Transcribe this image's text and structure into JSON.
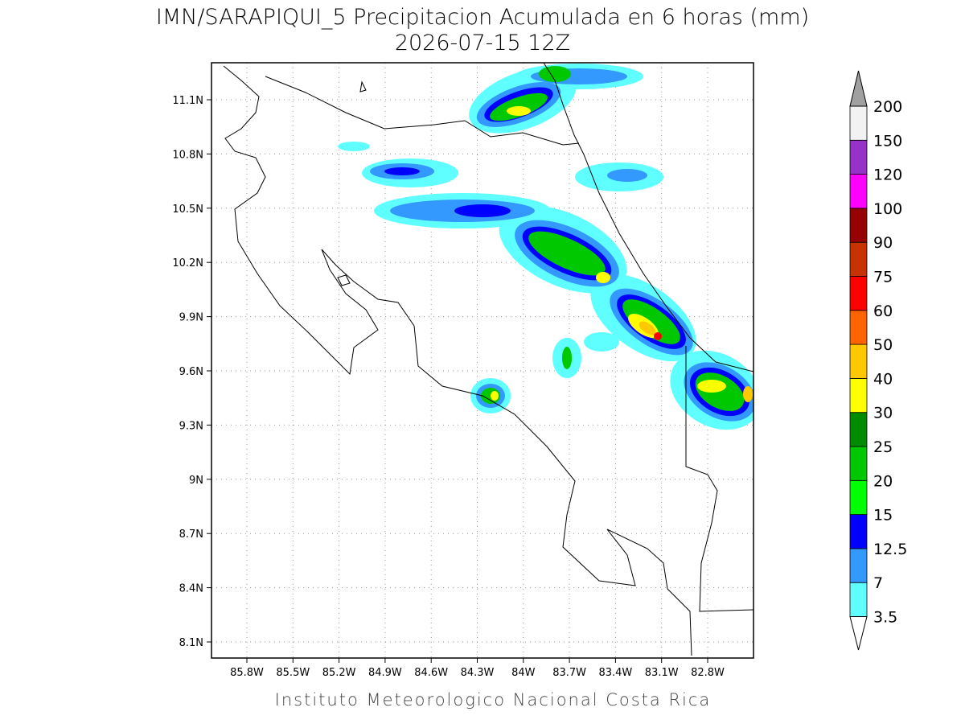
{
  "header": {
    "title": "IMN/SARAPIQUI_5 Precipitacion Acumulada en 6 horas (mm)",
    "subtitle": "2026-07-15 12Z"
  },
  "map": {
    "lon_ticks": [
      "85.8W",
      "85.5W",
      "85.2W",
      "84.9W",
      "84.6W",
      "84.3W",
      "84W",
      "83.7W",
      "83.4W",
      "83.1W",
      "82.8W"
    ],
    "lat_ticks": [
      "8.1N",
      "8.4N",
      "8.7N",
      "9N",
      "9.3N",
      "9.6N",
      "9.9N",
      "10.2N",
      "10.5N",
      "10.8N",
      "11.1N"
    ]
  },
  "colorbar": {
    "labels": [
      "3.5",
      "7",
      "12.5",
      "15",
      "20",
      "25",
      "30",
      "40",
      "50",
      "60",
      "75",
      "90",
      "100",
      "120",
      "150",
      "200"
    ],
    "colors": [
      "#60ffff",
      "#3399ff",
      "#0000ff",
      "#00ff00",
      "#00c800",
      "#008c00",
      "#ffff00",
      "#ffc800",
      "#ff6400",
      "#ff0000",
      "#c83200",
      "#960000",
      "#ff00ff",
      "#9632c8",
      "#f2f2f2"
    ],
    "under_color": "#ffffff",
    "over_color": "#a0a0a0"
  },
  "footer": {
    "text": "Instituto Meteorologico Nacional Costa Rica"
  }
}
